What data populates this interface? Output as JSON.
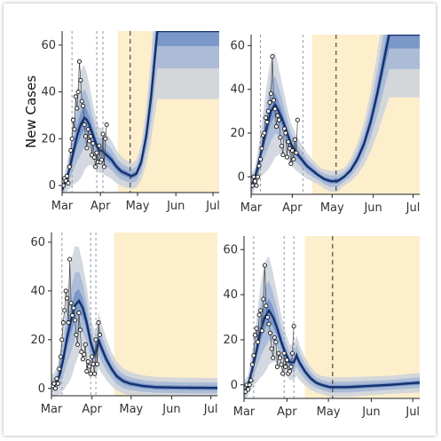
{
  "chart_data": [
    {
      "type": "line",
      "ylabel": "New Cases",
      "x_ticks": [
        "Mar",
        "Apr",
        "May",
        "Jun",
        "Jul"
      ],
      "y_ticks": [
        0,
        20,
        40,
        60
      ],
      "xlim": [
        0,
        127
      ],
      "ylim": [
        -3,
        66
      ],
      "shaded_from_day": 45,
      "vlines_dotted": [
        8,
        28,
        33
      ],
      "vline_dashed": 55,
      "median": [
        [
          0,
          -2
        ],
        [
          3,
          2
        ],
        [
          6,
          7
        ],
        [
          9,
          14
        ],
        [
          12,
          21
        ],
        [
          15,
          26
        ],
        [
          18,
          29
        ],
        [
          20,
          28
        ],
        [
          22,
          26
        ],
        [
          24,
          23
        ],
        [
          26,
          20
        ],
        [
          28,
          17
        ],
        [
          30,
          15
        ],
        [
          32,
          15
        ],
        [
          34,
          14
        ],
        [
          36,
          13
        ],
        [
          40,
          11
        ],
        [
          44,
          8
        ],
        [
          48,
          6
        ],
        [
          52,
          5
        ],
        [
          56,
          4
        ],
        [
          60,
          5
        ],
        [
          64,
          10
        ],
        [
          68,
          21
        ],
        [
          72,
          38
        ],
        [
          75,
          55
        ],
        [
          77,
          66
        ]
      ],
      "observed": [
        [
          1,
          0
        ],
        [
          2,
          3
        ],
        [
          3,
          2
        ],
        [
          4,
          4
        ],
        [
          5,
          1
        ],
        [
          6,
          8
        ],
        [
          7,
          15
        ],
        [
          8,
          20
        ],
        [
          9,
          28
        ],
        [
          10,
          24
        ],
        [
          11,
          38
        ],
        [
          12,
          33
        ],
        [
          13,
          40
        ],
        [
          14,
          53
        ],
        [
          15,
          45
        ],
        [
          16,
          36
        ],
        [
          17,
          34
        ],
        [
          18,
          26
        ],
        [
          19,
          21
        ],
        [
          20,
          16
        ],
        [
          21,
          24
        ],
        [
          22,
          19
        ],
        [
          23,
          21
        ],
        [
          24,
          13
        ],
        [
          25,
          18
        ],
        [
          26,
          12
        ],
        [
          27,
          8
        ],
        [
          28,
          14
        ],
        [
          29,
          10
        ],
        [
          30,
          17
        ],
        [
          31,
          10
        ],
        [
          32,
          11
        ],
        [
          33,
          22
        ],
        [
          34,
          8
        ],
        [
          35,
          20
        ],
        [
          36,
          26
        ]
      ]
    },
    {
      "type": "line",
      "ylabel": "",
      "x_ticks": [
        "Mar",
        "Apr",
        "May",
        "Jun",
        "Jul"
      ],
      "y_ticks": [
        0,
        20,
        40,
        60
      ],
      "xlim": [
        0,
        127
      ],
      "ylim": [
        -8,
        65
      ],
      "shaded_from_day": 46,
      "vlines_dotted": [
        7,
        39
      ],
      "vline_dashed": 64,
      "median": [
        [
          0,
          -5
        ],
        [
          3,
          0
        ],
        [
          6,
          7
        ],
        [
          9,
          15
        ],
        [
          12,
          23
        ],
        [
          15,
          30
        ],
        [
          18,
          33
        ],
        [
          20,
          31
        ],
        [
          23,
          27
        ],
        [
          26,
          22
        ],
        [
          30,
          15
        ],
        [
          34,
          11
        ],
        [
          38,
          8
        ],
        [
          42,
          5
        ],
        [
          46,
          3
        ],
        [
          50,
          1
        ],
        [
          55,
          -1
        ],
        [
          60,
          -2
        ],
        [
          65,
          -2
        ],
        [
          70,
          0
        ],
        [
          75,
          3
        ],
        [
          80,
          8
        ],
        [
          85,
          15
        ],
        [
          90,
          25
        ],
        [
          95,
          38
        ],
        [
          100,
          53
        ],
        [
          104,
          65
        ]
      ],
      "observed": [
        [
          1,
          -4
        ],
        [
          2,
          0
        ],
        [
          3,
          -2
        ],
        [
          4,
          -4
        ],
        [
          5,
          0
        ],
        [
          6,
          5
        ],
        [
          7,
          8
        ],
        [
          8,
          13
        ],
        [
          9,
          19
        ],
        [
          10,
          20
        ],
        [
          11,
          27
        ],
        [
          12,
          25
        ],
        [
          13,
          30
        ],
        [
          14,
          34
        ],
        [
          15,
          38
        ],
        [
          16,
          55
        ],
        [
          17,
          35
        ],
        [
          18,
          31
        ],
        [
          19,
          23
        ],
        [
          20,
          28
        ],
        [
          21,
          26
        ],
        [
          22,
          18
        ],
        [
          23,
          14
        ],
        [
          24,
          10
        ],
        [
          25,
          22
        ],
        [
          26,
          20
        ],
        [
          27,
          9
        ],
        [
          28,
          16
        ],
        [
          29,
          13
        ],
        [
          30,
          6
        ],
        [
          31,
          12
        ],
        [
          32,
          8
        ],
        [
          33,
          17
        ],
        [
          34,
          11
        ],
        [
          35,
          26
        ]
      ]
    },
    {
      "type": "line",
      "ylabel": "",
      "x_ticks": [
        "Mar",
        "Apr",
        "May",
        "Jun",
        "Jul"
      ],
      "y_ticks": [
        0,
        20,
        40,
        60
      ],
      "xlim": [
        0,
        127
      ],
      "ylim": [
        -3,
        64
      ],
      "shaded_from_day": 48,
      "vlines_dotted": [
        8,
        30,
        34
      ],
      "vline_dashed": null,
      "median": [
        [
          0,
          1
        ],
        [
          3,
          2
        ],
        [
          6,
          5
        ],
        [
          9,
          12
        ],
        [
          12,
          21
        ],
        [
          15,
          28
        ],
        [
          18,
          34
        ],
        [
          21,
          36
        ],
        [
          24,
          33
        ],
        [
          27,
          27
        ],
        [
          30,
          19
        ],
        [
          33,
          14
        ],
        [
          35,
          16
        ],
        [
          36,
          20
        ],
        [
          38,
          17
        ],
        [
          42,
          12
        ],
        [
          46,
          8
        ],
        [
          50,
          5
        ],
        [
          55,
          3
        ],
        [
          60,
          2
        ],
        [
          70,
          1
        ],
        [
          80,
          0.5
        ],
        [
          100,
          0.3
        ],
        [
          127,
          0.2
        ]
      ],
      "observed": [
        [
          1,
          1
        ],
        [
          2,
          2
        ],
        [
          3,
          0
        ],
        [
          4,
          4
        ],
        [
          5,
          2
        ],
        [
          6,
          8
        ],
        [
          7,
          13
        ],
        [
          8,
          20
        ],
        [
          9,
          27
        ],
        [
          10,
          32
        ],
        [
          11,
          40
        ],
        [
          12,
          37
        ],
        [
          13,
          27
        ],
        [
          14,
          53
        ],
        [
          15,
          35
        ],
        [
          16,
          30
        ],
        [
          17,
          33
        ],
        [
          18,
          28
        ],
        [
          19,
          22
        ],
        [
          20,
          18
        ],
        [
          21,
          31
        ],
        [
          22,
          24
        ],
        [
          23,
          15
        ],
        [
          24,
          12
        ],
        [
          25,
          14
        ],
        [
          26,
          18
        ],
        [
          27,
          7
        ],
        [
          28,
          11
        ],
        [
          29,
          9
        ],
        [
          30,
          6
        ],
        [
          31,
          13
        ],
        [
          32,
          10
        ],
        [
          33,
          6
        ],
        [
          34,
          20
        ],
        [
          35,
          10
        ],
        [
          36,
          27
        ],
        [
          37,
          22
        ]
      ]
    },
    {
      "type": "line",
      "ylabel": "",
      "x_ticks": [
        "Mar",
        "Apr",
        "May",
        "Jun",
        "Jul"
      ],
      "y_ticks": [
        0,
        20,
        40,
        60
      ],
      "xlim": [
        0,
        127
      ],
      "ylim": [
        -6,
        66
      ],
      "shaded_from_day": 44,
      "vlines_dotted": [
        7,
        29,
        36
      ],
      "vline_dashed": 64,
      "median": [
        [
          0,
          -4
        ],
        [
          3,
          0
        ],
        [
          6,
          7
        ],
        [
          9,
          15
        ],
        [
          12,
          24
        ],
        [
          15,
          30
        ],
        [
          18,
          33
        ],
        [
          21,
          30
        ],
        [
          24,
          25
        ],
        [
          27,
          19
        ],
        [
          30,
          14
        ],
        [
          33,
          10
        ],
        [
          36,
          10
        ],
        [
          38,
          13
        ],
        [
          40,
          10
        ],
        [
          44,
          6
        ],
        [
          48,
          3
        ],
        [
          52,
          1
        ],
        [
          56,
          0
        ],
        [
          62,
          -1
        ],
        [
          75,
          -1
        ],
        [
          90,
          -0.5
        ],
        [
          105,
          0
        ],
        [
          127,
          1
        ]
      ],
      "observed": [
        [
          1,
          -3
        ],
        [
          2,
          0
        ],
        [
          3,
          -2
        ],
        [
          4,
          0
        ],
        [
          5,
          2
        ],
        [
          6,
          9
        ],
        [
          7,
          13
        ],
        [
          8,
          22
        ],
        [
          9,
          25
        ],
        [
          10,
          19
        ],
        [
          11,
          31
        ],
        [
          12,
          33
        ],
        [
          13,
          24
        ],
        [
          14,
          38
        ],
        [
          15,
          53
        ],
        [
          16,
          35
        ],
        [
          17,
          30
        ],
        [
          18,
          27
        ],
        [
          19,
          23
        ],
        [
          20,
          16
        ],
        [
          21,
          12
        ],
        [
          22,
          21
        ],
        [
          23,
          19
        ],
        [
          24,
          8
        ],
        [
          25,
          14
        ],
        [
          26,
          12
        ],
        [
          27,
          9
        ],
        [
          28,
          5
        ],
        [
          29,
          14
        ],
        [
          30,
          8
        ],
        [
          31,
          11
        ],
        [
          32,
          5
        ],
        [
          33,
          6
        ],
        [
          34,
          8
        ],
        [
          35,
          14
        ],
        [
          36,
          26
        ]
      ]
    }
  ]
}
